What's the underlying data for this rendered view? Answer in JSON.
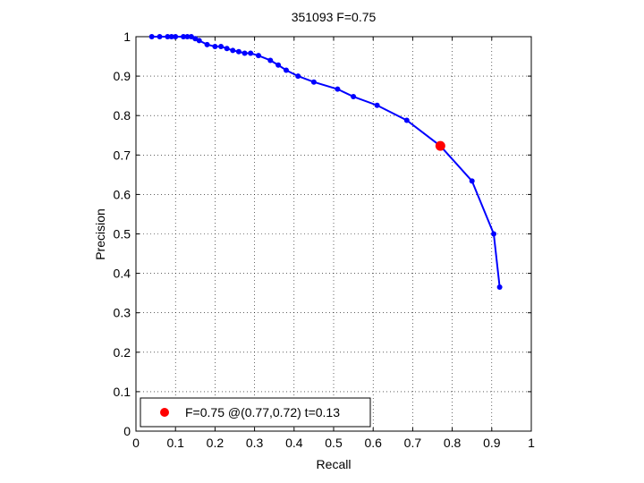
{
  "chart_data": {
    "type": "line",
    "title": "351093 F=0.75",
    "xlabel": "Recall",
    "ylabel": "Precision",
    "xlim": [
      0,
      1
    ],
    "ylim": [
      0,
      1
    ],
    "grid": true,
    "xticks": [
      "0",
      "0.1",
      "0.2",
      "0.3",
      "0.4",
      "0.5",
      "0.6",
      "0.7",
      "0.8",
      "0.9",
      "1"
    ],
    "yticks": [
      "0",
      "0.1",
      "0.2",
      "0.3",
      "0.4",
      "0.5",
      "0.6",
      "0.7",
      "0.8",
      "0.9",
      "1"
    ],
    "series": [
      {
        "color": "#0000ff",
        "x": [
          0.04,
          0.06,
          0.08,
          0.09,
          0.1,
          0.12,
          0.13,
          0.14,
          0.15,
          0.16,
          0.18,
          0.2,
          0.215,
          0.23,
          0.245,
          0.26,
          0.275,
          0.29,
          0.31,
          0.34,
          0.36,
          0.38,
          0.41,
          0.45,
          0.51,
          0.55,
          0.61,
          0.685,
          0.77,
          0.85,
          0.905,
          0.92
        ],
        "y": [
          1.0,
          1.0,
          1.0,
          1.0,
          1.0,
          1.0,
          1.0,
          1.0,
          0.995,
          0.99,
          0.98,
          0.975,
          0.975,
          0.97,
          0.965,
          0.962,
          0.958,
          0.958,
          0.952,
          0.94,
          0.928,
          0.915,
          0.9,
          0.885,
          0.867,
          0.848,
          0.826,
          0.788,
          0.723,
          0.634,
          0.5,
          0.365
        ]
      }
    ],
    "highlight": {
      "x": 0.77,
      "y": 0.723,
      "color": "#ff0000"
    },
    "legend": {
      "position": "bottom-left",
      "text": "F=0.75 @(0.77,0.72) t=0.13"
    }
  }
}
